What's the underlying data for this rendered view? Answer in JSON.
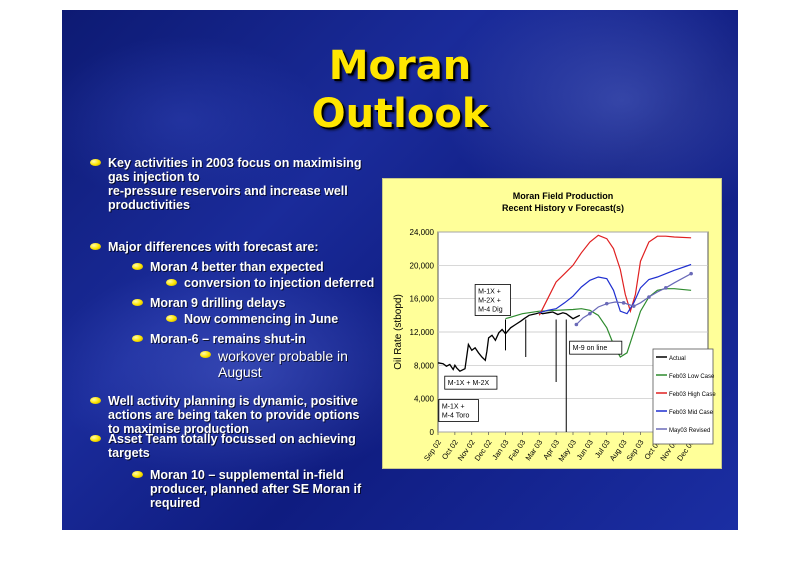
{
  "slide": {
    "title_line1": "Moran",
    "title_line2": "Outlook",
    "bullets": [
      {
        "level": 1,
        "lines": [
          "Key activities in 2003 focus on maximising",
          "gas injection to",
          "re-pressure reservoirs and increase well",
          "productivities"
        ]
      },
      {
        "level": 1,
        "lines": [
          "Major differences with forecast are:"
        ]
      },
      {
        "level": 2,
        "lines": [
          "Moran 4 better than expected"
        ]
      },
      {
        "level": 3,
        "lines": [
          "conversion to injection deferred"
        ]
      },
      {
        "level": 2,
        "lines": [
          "Moran 9 drilling delays"
        ]
      },
      {
        "level": 3,
        "lines": [
          "Now commencing in June"
        ]
      },
      {
        "level": 2,
        "lines": [
          "Moran-6 – remains shut-in"
        ]
      },
      {
        "level": 4,
        "lines": [
          "workover probable in",
          "August"
        ]
      },
      {
        "level": 1,
        "lines": [
          "Well activity planning is dynamic,  positive",
          "actions are being taken to provide options",
          "to maximise production"
        ]
      },
      {
        "level": 1,
        "lines": [
          "Asset Team totally focussed on achieving",
          "targets"
        ]
      },
      {
        "level": 2,
        "lines": [
          "Moran 10 – supplemental in-field",
          "producer, planned after SE Moran if",
          "required"
        ]
      }
    ]
  },
  "chart_data": {
    "type": "line",
    "title": "Moran Field Production",
    "subtitle": "Recent History v Forecast(s)",
    "ylabel": "Oil Rate  (stbopd)",
    "xlabel": "",
    "ylim": [
      0,
      24000
    ],
    "yticks": [
      0,
      4000,
      8000,
      12000,
      16000,
      20000,
      24000
    ],
    "ytick_labels": [
      "0",
      "4,000",
      "8,000",
      "12,000",
      "16,000",
      "20,000",
      "24,000"
    ],
    "xlim": [
      0,
      16
    ],
    "categories": [
      "Sep 02",
      "Oct 02",
      "Nov 02",
      "Dec 02",
      "Jan 03",
      "Feb 03",
      "Mar 03",
      "Apr 03",
      "May 03",
      "Jun 03",
      "Jul 03",
      "Aug 03",
      "Sep 03",
      "Oct 03",
      "Nov 03",
      "Dec 03"
    ],
    "grid": true,
    "legend": "right",
    "series": [
      {
        "name": "Actual",
        "color": "#000000",
        "x": [
          0,
          0.3,
          0.5,
          0.7,
          0.9,
          1.0,
          1.1,
          1.3,
          1.6,
          1.8,
          2.0,
          2.2,
          2.4,
          2.6,
          2.8,
          2.9,
          3.0,
          3.2,
          3.4,
          3.6,
          3.8,
          4.0,
          4.3,
          4.6,
          4.9,
          5.1,
          5.4,
          5.6,
          5.8,
          6.0,
          6.2,
          6.5,
          6.8,
          7.1,
          7.4,
          7.6,
          7.8,
          8.0,
          8.2,
          8.4
        ],
        "y": [
          8300,
          8200,
          7900,
          8100,
          7500,
          8000,
          7700,
          7300,
          7600,
          10500,
          9800,
          10100,
          9500,
          9000,
          8600,
          9700,
          11300,
          11600,
          11000,
          11900,
          12300,
          11800,
          12500,
          12900,
          13300,
          13600,
          14000,
          14100,
          14200,
          14300,
          14200,
          14300,
          14400,
          14100,
          14300,
          14200,
          13900,
          13600,
          13800,
          14000
        ]
      },
      {
        "name": "Feb03 Low Case",
        "color": "#2e8b2e",
        "x": [
          4,
          5,
          6,
          7,
          8,
          8.5,
          9,
          9.5,
          10,
          10.4,
          10.8,
          11.2,
          11.6,
          12,
          12.5,
          13,
          13.5,
          14,
          15
        ],
        "y": [
          13600,
          14200,
          14500,
          14600,
          14700,
          14800,
          14600,
          14000,
          12500,
          10500,
          9000,
          9500,
          12000,
          14500,
          16200,
          17000,
          17200,
          17200,
          17000
        ]
      },
      {
        "name": "Feb03 High Case",
        "color": "#e02020",
        "x": [
          6,
          6.5,
          7,
          7.5,
          8,
          8.5,
          9,
          9.5,
          10,
          10.4,
          10.8,
          11.1,
          11.4,
          11.7,
          12,
          12.5,
          13,
          13.5,
          14,
          15
        ],
        "y": [
          14000,
          16000,
          18000,
          19000,
          20000,
          21500,
          22800,
          23600,
          23200,
          22000,
          19500,
          16500,
          14500,
          16500,
          20500,
          22800,
          23500,
          23500,
          23400,
          23300
        ]
      },
      {
        "name": "Feb03 Mid Case",
        "color": "#1f2fd0",
        "x": [
          6,
          6.5,
          7,
          7.5,
          8,
          8.5,
          9,
          9.5,
          10,
          10.4,
          10.8,
          11.2,
          11.6,
          12,
          12.5,
          13,
          13.5,
          14,
          15
        ],
        "y": [
          14300,
          14600,
          14800,
          15500,
          16300,
          17400,
          18200,
          18600,
          18400,
          17000,
          14500,
          14200,
          15500,
          17300,
          18300,
          18600,
          19000,
          19400,
          20100
        ]
      },
      {
        "name": "May03 Revised",
        "color": "#6a6ab8",
        "x": [
          8.2,
          8.6,
          9,
          9.5,
          10,
          10.5,
          11,
          11.3,
          11.6,
          12,
          12.5,
          13,
          13.5,
          14,
          15
        ],
        "y": [
          12900,
          13700,
          14200,
          15000,
          15400,
          15600,
          15500,
          15300,
          15100,
          15500,
          16200,
          16800,
          17300,
          17900,
          19000
        ]
      }
    ],
    "annotations": [
      {
        "text": [
          "M-1X +",
          "M-4 Toro"
        ],
        "x": 0.05,
        "y": 3900
      },
      {
        "text": [
          "M-1X + M-2X"
        ],
        "x": 0.4,
        "y": 6700
      },
      {
        "text": [
          "M-1X +",
          "M-2X +",
          "M-4 Dig"
        ],
        "x": 2.2,
        "y": 17700
      },
      {
        "text": [
          "M-9 on line"
        ],
        "x": 7.8,
        "y": 10900
      }
    ]
  }
}
